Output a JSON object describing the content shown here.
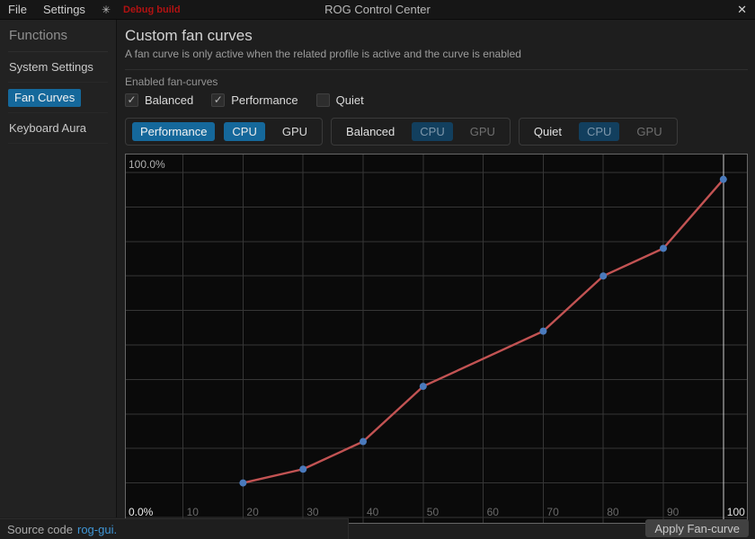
{
  "colors": {
    "accent": "#15689b",
    "accent_dim": "#123f5e",
    "curve_line": "#c25353",
    "curve_point": "#4a7abc",
    "grid": "#363636",
    "grid_highlight": "#cfcfcf",
    "link": "#3f96d6",
    "debug": "#b11212"
  },
  "titlebar": {
    "menu_items": [
      "File",
      "Settings"
    ],
    "brightness_icon": "✳",
    "debug_label": "Debug build",
    "title": "ROG Control Center",
    "close_icon": "✕"
  },
  "sidebar": {
    "header": "Functions",
    "items": [
      {
        "label": "System Settings",
        "active": false
      },
      {
        "label": "Fan Curves",
        "active": true
      },
      {
        "label": "Keyboard Aura",
        "active": false
      }
    ]
  },
  "main": {
    "title": "Custom fan curves",
    "subtitle": "A fan curve is only active when the related profile is active and the curve is enabled",
    "enabled_section": {
      "label": "Enabled fan-curves",
      "check_glyph": "✓",
      "checkboxes": [
        {
          "label": "Balanced",
          "checked": true
        },
        {
          "label": "Performance",
          "checked": true
        },
        {
          "label": "Quiet",
          "checked": false
        }
      ]
    },
    "profile_tabs": [
      {
        "profile": "Performance",
        "active": true,
        "fans": [
          {
            "label": "CPU",
            "selected": true
          },
          {
            "label": "GPU",
            "selected": false
          }
        ]
      },
      {
        "profile": "Balanced",
        "active": false,
        "fans": [
          {
            "label": "CPU",
            "selected": true
          },
          {
            "label": "GPU",
            "selected": false
          }
        ]
      },
      {
        "profile": "Quiet",
        "active": false,
        "fans": [
          {
            "label": "CPU",
            "selected": true
          },
          {
            "label": "GPU",
            "selected": false
          }
        ]
      }
    ]
  },
  "chart_data": {
    "type": "line",
    "series": [
      {
        "name": "Performance CPU fan curve",
        "x": [
          20,
          30,
          40,
          50,
          70,
          80,
          90,
          100
        ],
        "y": [
          10,
          14,
          22,
          38,
          54,
          70,
          78,
          98
        ]
      }
    ],
    "x_ticks": [
      10,
      20,
      30,
      40,
      50,
      60,
      70,
      80,
      90,
      100
    ],
    "xlim": [
      0,
      103
    ],
    "ylim": [
      0,
      105
    ],
    "y_top_label": "100.0%",
    "y_bottom_label": "0.0%",
    "highlight_x_tick": 100,
    "grid": true,
    "legend": false
  },
  "footer": {
    "source_text": "Source code",
    "source_link": "rog-gui.",
    "apply_label": "Apply Fan-curve"
  }
}
